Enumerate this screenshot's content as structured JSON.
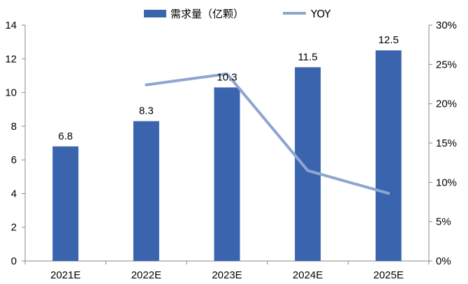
{
  "chart_data": {
    "type": "bar",
    "categories": [
      "2021E",
      "2022E",
      "2023E",
      "2024E",
      "2025E"
    ],
    "series": [
      {
        "name": "需求量（亿颗）",
        "kind": "bar",
        "axis": "left",
        "color": "#3A64AE",
        "values": [
          6.8,
          8.3,
          10.3,
          11.5,
          12.5
        ],
        "data_labels": [
          "6.8",
          "8.3",
          "10.3",
          "11.5",
          "12.5"
        ]
      },
      {
        "name": "YOY",
        "kind": "line",
        "axis": "right",
        "color": "#8EA6CF",
        "values": [
          null,
          0.224,
          0.238,
          0.115,
          0.086
        ]
      }
    ],
    "ylim_left": [
      0,
      14
    ],
    "ylim_right": [
      0,
      0.3
    ],
    "yticks_left": [
      "0",
      "2",
      "4",
      "6",
      "8",
      "10",
      "12",
      "14"
    ],
    "yticks_right": [
      "0%",
      "5%",
      "10%",
      "15%",
      "20%",
      "25%",
      "30%"
    ],
    "grid": false,
    "legend_position": "top-center"
  }
}
